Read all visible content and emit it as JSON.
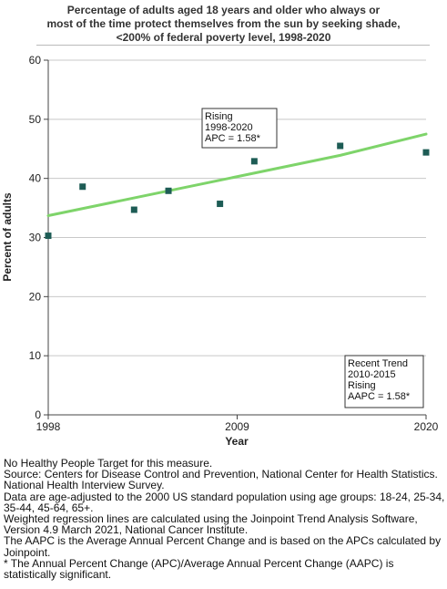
{
  "chart_data": {
    "type": "scatter",
    "title_lines": [
      "Percentage of adults aged 18 years and older who always or",
      "most of the time protect themselves from the sun by seeking shade,",
      "<200% of federal poverty level,  1998-2020"
    ],
    "xlabel": "Year",
    "ylabel": "Percent of adults",
    "xlim": [
      1998,
      2020
    ],
    "ylim": [
      0,
      60
    ],
    "x_ticks": [
      1998,
      2009,
      2020
    ],
    "y_ticks": [
      0,
      10,
      20,
      30,
      40,
      50,
      60
    ],
    "grid": "horizontal",
    "points": [
      {
        "x": 1998,
        "y": 30.3
      },
      {
        "x": 2000,
        "y": 38.6
      },
      {
        "x": 2003,
        "y": 34.7
      },
      {
        "x": 2005,
        "y": 37.9
      },
      {
        "x": 2008,
        "y": 35.7
      },
      {
        "x": 2010,
        "y": 42.9
      },
      {
        "x": 2015,
        "y": 45.5
      },
      {
        "x": 2020,
        "y": 44.4
      }
    ],
    "trend_line": [
      {
        "x": 1998,
        "y": 33.7
      },
      {
        "x": 2015,
        "y": 43.9
      },
      {
        "x": 2020,
        "y": 47.5
      }
    ],
    "marker_color": "#1d5c55",
    "line_color": "#7ed46a",
    "annotations": [
      {
        "lines": [
          "Rising",
          "1998-2020",
          "APC =  1.58*"
        ]
      },
      {
        "lines": [
          "Recent Trend",
          "2010-2015",
          "Rising",
          "AAPC =  1.58*"
        ]
      }
    ]
  },
  "footnotes": [
    "No Healthy People Target for this measure.",
    "Source: Centers for Disease Control and Prevention, National Center for Health Statistics. National Health Interview Survey.",
    "Data are age-adjusted to the 2000 US standard population using age groups: 18-24, 25-34, 35-44, 45-64, 65+.",
    "Weighted regression lines are calculated using the Joinpoint Trend Analysis Software, Version 4.9 March 2021, National Cancer Institute.",
    "The AAPC is the Average Annual Percent Change and is based on the APCs calculated by Joinpoint.",
    "* The Annual Percent Change (APC)/Average Annual Percent Change (AAPC) is statistically significant."
  ]
}
